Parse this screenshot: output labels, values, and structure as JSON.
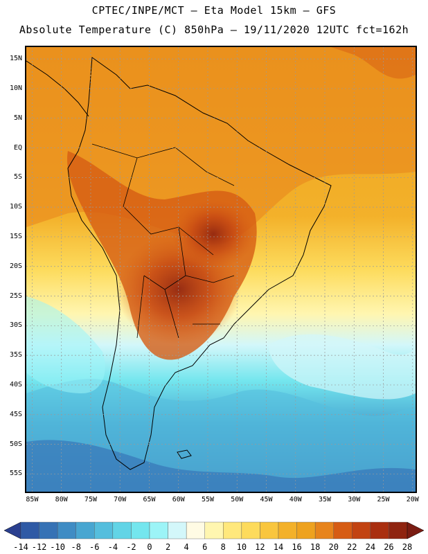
{
  "header": {
    "line1": "CPTEC/INPE/MCT —  Eta Model 15km — GFS",
    "line2": "Absolute Temperature (C) 850hPa — 19/11/2020 12UTC fct=162h"
  },
  "map": {
    "lat_labels": [
      "15N",
      "10N",
      "5N",
      "EQ",
      "5S",
      "10S",
      "15S",
      "20S",
      "25S",
      "30S",
      "35S",
      "40S",
      "45S",
      "50S",
      "55S"
    ],
    "lon_labels": [
      "85W",
      "80W",
      "75W",
      "70W",
      "65W",
      "60W",
      "55W",
      "50W",
      "45W",
      "40W",
      "35W",
      "30W",
      "25W",
      "20W"
    ],
    "extent": {
      "lon_min": -86,
      "lon_max": -19.5,
      "lat_min": -58,
      "lat_max": 17
    }
  },
  "colorbar": {
    "labels": [
      "-14",
      "-12",
      "-10",
      "-8",
      "-6",
      "-4",
      "-2",
      "0",
      "2",
      "4",
      "6",
      "8",
      "10",
      "12",
      "14",
      "16",
      "18",
      "20",
      "22",
      "24",
      "26",
      "28"
    ],
    "colors": [
      "#2a3f8f",
      "#2f5aa5",
      "#3672b5",
      "#3f8cc4",
      "#48a6d1",
      "#55bedd",
      "#62d4e6",
      "#74e6ee",
      "#9cf4f7",
      "#d3f7fa",
      "#fffbe4",
      "#fff6b0",
      "#ffe87c",
      "#fddb5c",
      "#f9c63e",
      "#f3b12a",
      "#eea21f",
      "#e7841c",
      "#d65c14",
      "#c24312",
      "#a92f10",
      "#8f2410",
      "#7a1c12"
    ]
  }
}
